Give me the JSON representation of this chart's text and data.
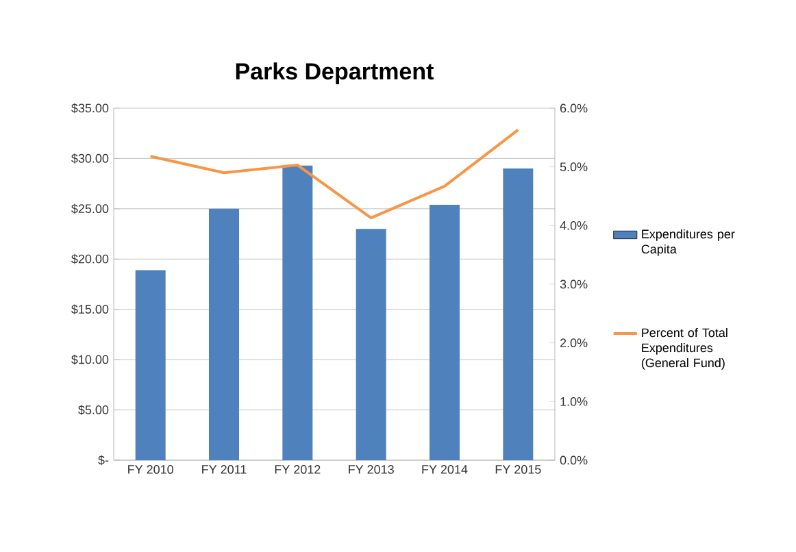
{
  "chart_data": {
    "type": "bar",
    "title": "Parks Department",
    "categories": [
      "FY 2010",
      "FY 2011",
      "FY 2012",
      "FY 2013",
      "FY 2014",
      "FY 2015"
    ],
    "series": [
      {
        "name": "Expenditures per Capita",
        "color": "#4f81bd",
        "values": [
          18.9,
          25.0,
          29.3,
          23.0,
          25.4,
          29.0
        ]
      },
      {
        "name": "Percent of Total Expenditures (General Fund)",
        "color": "#f79646",
        "type": "line",
        "axis": "y2",
        "values": [
          5.18,
          4.9,
          5.03,
          4.13,
          4.67,
          5.63
        ]
      }
    ],
    "ylim": [
      0,
      35
    ],
    "yticks": [
      {
        "value": 0,
        "label": "$-"
      },
      {
        "value": 5,
        "label": "$5.00"
      },
      {
        "value": 10,
        "label": "$10.00"
      },
      {
        "value": 15,
        "label": "$15.00"
      },
      {
        "value": 20,
        "label": "$20.00"
      },
      {
        "value": 25,
        "label": "$25.00"
      },
      {
        "value": 30,
        "label": "$30.00"
      },
      {
        "value": 35,
        "label": "$35.00"
      }
    ],
    "y2lim": [
      0,
      6
    ],
    "y2ticks": [
      {
        "value": 0,
        "label": "0.0%"
      },
      {
        "value": 1,
        "label": "1.0%"
      },
      {
        "value": 2,
        "label": "2.0%"
      },
      {
        "value": 3,
        "label": "3.0%"
      },
      {
        "value": 4,
        "label": "4.0%"
      },
      {
        "value": 5,
        "label": "5.0%"
      },
      {
        "value": 6,
        "label": "6.0%"
      }
    ],
    "grid": "y",
    "legend": "right",
    "marker": "none",
    "line_style": "solid"
  }
}
